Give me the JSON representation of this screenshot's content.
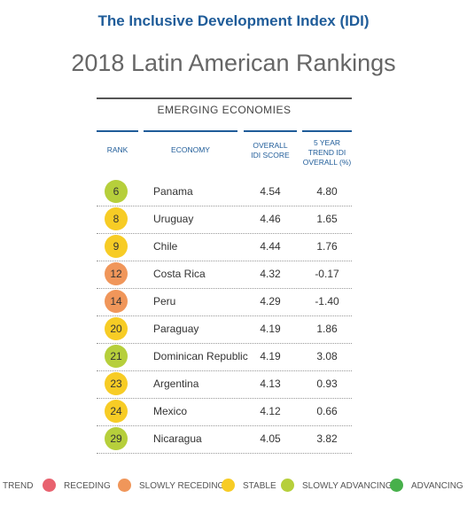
{
  "header": {
    "subtitle": "The Inclusive Development Index (IDI)",
    "title": "2018 Latin American Rankings"
  },
  "table": {
    "group_title": "EMERGING ECONOMIES",
    "columns": {
      "rank": "RANK",
      "economy": "ECONOMY",
      "score_1": "OVERALL",
      "score_2": "IDI SCORE",
      "trend_1": "5 YEAR",
      "trend_2": "TREND IDI",
      "trend_3": "OVERALL (%)"
    }
  },
  "chart_data": {
    "type": "table",
    "rows": [
      {
        "rank": "6",
        "economy": "Panama",
        "score": "4.54",
        "trend": "4.80",
        "category": "slowly_advancing"
      },
      {
        "rank": "8",
        "economy": "Uruguay",
        "score": "4.46",
        "trend": "1.65",
        "category": "stable"
      },
      {
        "rank": "9",
        "economy": "Chile",
        "score": "4.44",
        "trend": "1.76",
        "category": "stable"
      },
      {
        "rank": "12",
        "economy": "Costa Rica",
        "score": "4.32",
        "trend": "-0.17",
        "category": "slowly_receding"
      },
      {
        "rank": "14",
        "economy": "Peru",
        "score": "4.29",
        "trend": "-1.40",
        "category": "slowly_receding"
      },
      {
        "rank": "20",
        "economy": "Paraguay",
        "score": "4.19",
        "trend": "1.86",
        "category": "stable"
      },
      {
        "rank": "21",
        "economy": "Dominican Republic",
        "score": "4.19",
        "trend": "3.08",
        "category": "slowly_advancing"
      },
      {
        "rank": "23",
        "economy": "Argentina",
        "score": "4.13",
        "trend": "0.93",
        "category": "stable"
      },
      {
        "rank": "24",
        "economy": "Mexico",
        "score": "4.12",
        "trend": "0.66",
        "category": "stable"
      },
      {
        "rank": "29",
        "economy": "Nicaragua",
        "score": "4.05",
        "trend": "3.82",
        "category": "slowly_advancing"
      }
    ]
  },
  "legend": {
    "title": "TREND",
    "items": [
      {
        "key": "receding",
        "label": "RECEDING",
        "color": "#e8626f"
      },
      {
        "key": "slowly_receding",
        "label": "SLOWLY RECEDING",
        "color": "#f0965a"
      },
      {
        "key": "stable",
        "label": "STABLE",
        "color": "#f7cc25"
      },
      {
        "key": "slowly_advancing",
        "label": "SLOWLY ADVANCING",
        "color": "#b6cf3b"
      },
      {
        "key": "advancing",
        "label": "ADVANCING",
        "color": "#47b04b"
      }
    ]
  }
}
